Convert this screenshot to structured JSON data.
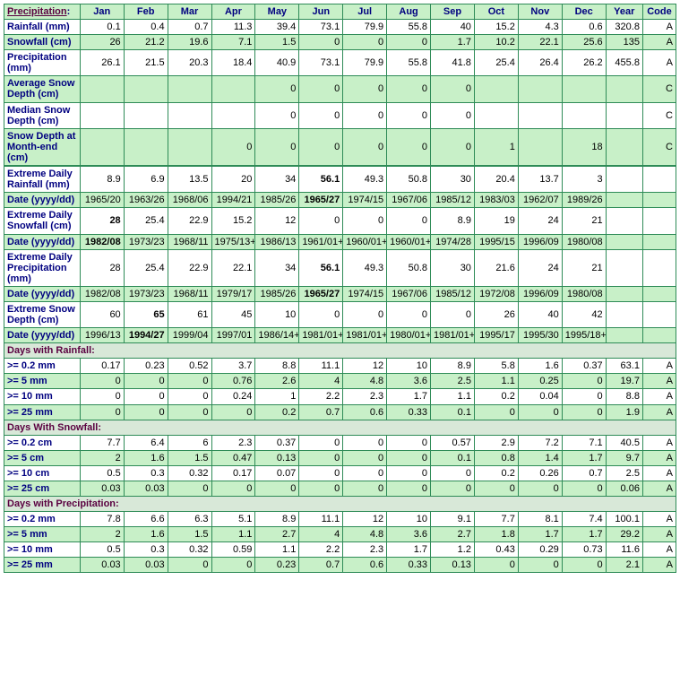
{
  "header": {
    "precip_link": "Precipitation",
    "months": [
      "Jan",
      "Feb",
      "Mar",
      "Apr",
      "May",
      "Jun",
      "Jul",
      "Aug",
      "Sep",
      "Oct",
      "Nov",
      "Dec"
    ],
    "year": "Year",
    "code": "Code"
  },
  "rows_main": [
    {
      "label": "Rainfall (mm)",
      "vals": [
        "0.1",
        "0.4",
        "0.7",
        "11.3",
        "39.4",
        "73.1",
        "79.9",
        "55.8",
        "40",
        "15.2",
        "4.3",
        "0.6",
        "320.8",
        "A"
      ],
      "bg": "even"
    },
    {
      "label": "Snowfall (cm)",
      "vals": [
        "26",
        "21.2",
        "19.6",
        "7.1",
        "1.5",
        "0",
        "0",
        "0",
        "1.7",
        "10.2",
        "22.1",
        "25.6",
        "135",
        "A"
      ],
      "bg": "odd"
    },
    {
      "label": "Precipitation (mm)",
      "vals": [
        "26.1",
        "21.5",
        "20.3",
        "18.4",
        "40.9",
        "73.1",
        "79.9",
        "55.8",
        "41.8",
        "25.4",
        "26.4",
        "26.2",
        "455.8",
        "A"
      ],
      "bg": "even"
    },
    {
      "label": "Average Snow Depth (cm)",
      "vals": [
        "",
        "",
        "",
        "",
        "0",
        "0",
        "0",
        "0",
        "0",
        "",
        "",
        "",
        "",
        "C"
      ],
      "bg": "odd"
    },
    {
      "label": "Median Snow Depth (cm)",
      "vals": [
        "",
        "",
        "",
        "",
        "0",
        "0",
        "0",
        "0",
        "0",
        "",
        "",
        "",
        "",
        "C"
      ],
      "bg": "even"
    },
    {
      "label": "Snow Depth at Month-end (cm)",
      "vals": [
        "",
        "",
        "",
        "0",
        "0",
        "0",
        "0",
        "0",
        "0",
        "1",
        "",
        "18",
        "",
        "C"
      ],
      "bg": "odd",
      "thick_bottom": true
    }
  ],
  "rows_extreme": [
    {
      "label": "Extreme Daily Rainfall (mm)",
      "vals": [
        "8.9",
        "6.9",
        "13.5",
        "20",
        "34",
        "56.1",
        "49.3",
        "50.8",
        "30",
        "20.4",
        "13.7",
        "3",
        "",
        ""
      ],
      "bg": "even",
      "bold_idx": [
        5
      ],
      "thick_top": true
    },
    {
      "label": "Date (yyyy/dd)",
      "vals": [
        "1965/20",
        "1963/26",
        "1968/06",
        "1994/21",
        "1985/26",
        "1965/27",
        "1974/15",
        "1967/06",
        "1985/12",
        "1983/03",
        "1962/07",
        "1989/26",
        "",
        ""
      ],
      "bg": "odd",
      "bold_idx": [
        5
      ]
    },
    {
      "label": "Extreme Daily Snowfall (cm)",
      "vals": [
        "28",
        "25.4",
        "22.9",
        "15.2",
        "12",
        "0",
        "0",
        "0",
        "8.9",
        "19",
        "24",
        "21",
        "",
        ""
      ],
      "bg": "even",
      "bold_idx": [
        0
      ]
    },
    {
      "label": "Date (yyyy/dd)",
      "vals": [
        "1982/08",
        "1973/23",
        "1968/11",
        "1975/13+",
        "1986/13",
        "1961/01+",
        "1960/01+",
        "1960/01+",
        "1974/28",
        "1995/15",
        "1996/09",
        "1980/08",
        "",
        ""
      ],
      "bg": "odd",
      "bold_idx": [
        0
      ]
    },
    {
      "label": "Extreme Daily Precipitation (mm)",
      "vals": [
        "28",
        "25.4",
        "22.9",
        "22.1",
        "34",
        "56.1",
        "49.3",
        "50.8",
        "30",
        "21.6",
        "24",
        "21",
        "",
        ""
      ],
      "bg": "even",
      "bold_idx": [
        5
      ]
    },
    {
      "label": "Date (yyyy/dd)",
      "vals": [
        "1982/08",
        "1973/23",
        "1968/11",
        "1979/17",
        "1985/26",
        "1965/27",
        "1974/15",
        "1967/06",
        "1985/12",
        "1972/08",
        "1996/09",
        "1980/08",
        "",
        ""
      ],
      "bg": "odd",
      "bold_idx": [
        5
      ]
    },
    {
      "label": "Extreme Snow Depth (cm)",
      "vals": [
        "60",
        "65",
        "61",
        "45",
        "10",
        "0",
        "0",
        "0",
        "0",
        "26",
        "40",
        "42",
        "",
        ""
      ],
      "bg": "even",
      "bold_idx": [
        1
      ]
    },
    {
      "label": "Date (yyyy/dd)",
      "vals": [
        "1996/13",
        "1994/27",
        "1999/04",
        "1997/01",
        "1986/14+",
        "1981/01+",
        "1981/01+",
        "1980/01+",
        "1981/01+",
        "1995/17",
        "1995/30",
        "1995/18+",
        "",
        ""
      ],
      "bg": "odd",
      "bold_idx": [
        1
      ]
    }
  ],
  "sections": [
    {
      "title": "Days with Rainfall:",
      "rows": [
        {
          "label": ">= 0.2 mm",
          "vals": [
            "0.17",
            "0.23",
            "0.52",
            "3.7",
            "8.8",
            "11.1",
            "12",
            "10",
            "8.9",
            "5.8",
            "1.6",
            "0.37",
            "63.1",
            "A"
          ],
          "bg": "even"
        },
        {
          "label": ">= 5 mm",
          "vals": [
            "0",
            "0",
            "0",
            "0.76",
            "2.6",
            "4",
            "4.8",
            "3.6",
            "2.5",
            "1.1",
            "0.25",
            "0",
            "19.7",
            "A"
          ],
          "bg": "odd"
        },
        {
          "label": ">= 10 mm",
          "vals": [
            "0",
            "0",
            "0",
            "0.24",
            "1",
            "2.2",
            "2.3",
            "1.7",
            "1.1",
            "0.2",
            "0.04",
            "0",
            "8.8",
            "A"
          ],
          "bg": "even"
        },
        {
          "label": ">= 25 mm",
          "vals": [
            "0",
            "0",
            "0",
            "0",
            "0.2",
            "0.7",
            "0.6",
            "0.33",
            "0.1",
            "0",
            "0",
            "0",
            "1.9",
            "A"
          ],
          "bg": "odd"
        }
      ]
    },
    {
      "title": "Days With Snowfall:",
      "rows": [
        {
          "label": ">= 0.2 cm",
          "vals": [
            "7.7",
            "6.4",
            "6",
            "2.3",
            "0.37",
            "0",
            "0",
            "0",
            "0.57",
            "2.9",
            "7.2",
            "7.1",
            "40.5",
            "A"
          ],
          "bg": "even"
        },
        {
          "label": ">= 5 cm",
          "vals": [
            "2",
            "1.6",
            "1.5",
            "0.47",
            "0.13",
            "0",
            "0",
            "0",
            "0.1",
            "0.8",
            "1.4",
            "1.7",
            "9.7",
            "A"
          ],
          "bg": "odd"
        },
        {
          "label": ">= 10 cm",
          "vals": [
            "0.5",
            "0.3",
            "0.32",
            "0.17",
            "0.07",
            "0",
            "0",
            "0",
            "0",
            "0.2",
            "0.26",
            "0.7",
            "2.5",
            "A"
          ],
          "bg": "even"
        },
        {
          "label": ">= 25 cm",
          "vals": [
            "0.03",
            "0.03",
            "0",
            "0",
            "0",
            "0",
            "0",
            "0",
            "0",
            "0",
            "0",
            "0",
            "0.06",
            "A"
          ],
          "bg": "odd"
        }
      ]
    },
    {
      "title": "Days with Precipitation:",
      "rows": [
        {
          "label": ">= 0.2 mm",
          "vals": [
            "7.8",
            "6.6",
            "6.3",
            "5.1",
            "8.9",
            "11.1",
            "12",
            "10",
            "9.1",
            "7.7",
            "8.1",
            "7.4",
            "100.1",
            "A"
          ],
          "bg": "even"
        },
        {
          "label": ">= 5 mm",
          "vals": [
            "2",
            "1.6",
            "1.5",
            "1.1",
            "2.7",
            "4",
            "4.8",
            "3.6",
            "2.7",
            "1.8",
            "1.7",
            "1.7",
            "29.2",
            "A"
          ],
          "bg": "odd"
        },
        {
          "label": ">= 10 mm",
          "vals": [
            "0.5",
            "0.3",
            "0.32",
            "0.59",
            "1.1",
            "2.2",
            "2.3",
            "1.7",
            "1.2",
            "0.43",
            "0.29",
            "0.73",
            "11.6",
            "A"
          ],
          "bg": "even"
        },
        {
          "label": ">= 25 mm",
          "vals": [
            "0.03",
            "0.03",
            "0",
            "0",
            "0.23",
            "0.7",
            "0.6",
            "0.33",
            "0.13",
            "0",
            "0",
            "0",
            "2.1",
            "A"
          ],
          "bg": "odd"
        }
      ]
    }
  ]
}
